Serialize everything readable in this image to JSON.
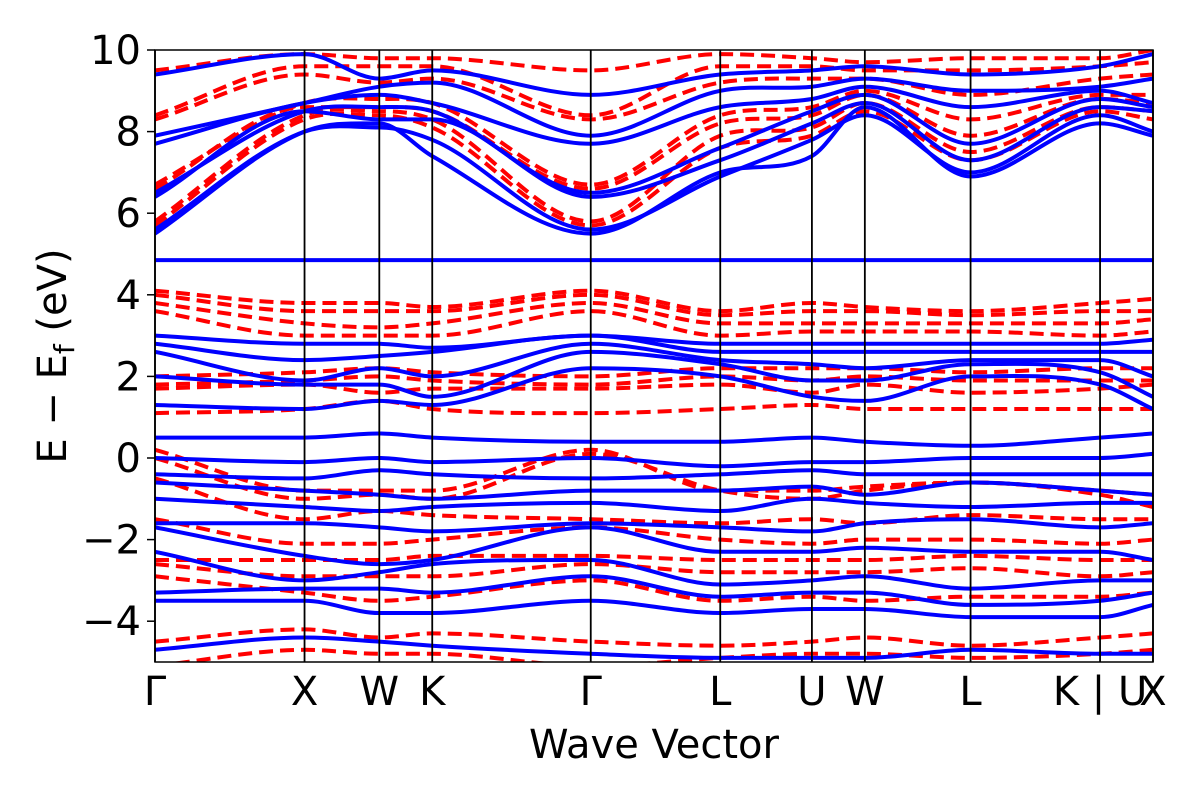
{
  "chart_data": {
    "type": "line",
    "xlabel": "Wave Vector",
    "ylabel": "E − E",
    "ylabel_sub": "f",
    "ylabel_unit": " (eV)",
    "ylim": [
      -5,
      10
    ],
    "yticks": [
      -4,
      -2,
      0,
      2,
      4,
      6,
      8,
      10
    ],
    "ytick_labels": [
      "−4",
      "−2",
      "0",
      "2",
      "4",
      "6",
      "8",
      "10"
    ],
    "grid": false,
    "kpath": [
      {
        "label": "Γ",
        "x": 0.0
      },
      {
        "label": "X",
        "x": 1.0
      },
      {
        "label": "W",
        "x": 1.5
      },
      {
        "label": "K",
        "x": 1.854
      },
      {
        "label": "Γ",
        "x": 2.914
      },
      {
        "label": "L",
        "x": 3.78
      },
      {
        "label": "U",
        "x": 4.393
      },
      {
        "label": "W",
        "x": 4.747
      },
      {
        "label": "L",
        "x": 5.454
      },
      {
        "label": "K | U",
        "x": 6.32
      },
      {
        "label": "X",
        "x": 6.674
      }
    ],
    "series": [
      {
        "style": "solid",
        "color": "#0000ff",
        "bands": [
          [
            -4.7,
            -4.4,
            -4.5,
            -4.6,
            -4.8,
            -4.9,
            -4.9,
            -4.9,
            -4.7,
            -4.8,
            -4.8
          ],
          [
            -3.5,
            -3.5,
            -3.8,
            -3.8,
            -3.5,
            -3.8,
            -3.7,
            -3.7,
            -3.9,
            -3.9,
            -3.6
          ],
          [
            -3.3,
            -3.2,
            -3.2,
            -3.3,
            -2.9,
            -3.4,
            -3.3,
            -3.3,
            -3.6,
            -3.5,
            -3.3
          ],
          [
            -2.3,
            -3.0,
            -2.8,
            -2.6,
            -2.5,
            -3.1,
            -3.0,
            -2.9,
            -3.2,
            -3.0,
            -3.0
          ],
          [
            -1.7,
            -2.4,
            -2.6,
            -2.5,
            -1.7,
            -2.3,
            -2.3,
            -2.2,
            -2.3,
            -2.3,
            -2.5
          ],
          [
            -1.6,
            -1.6,
            -1.7,
            -1.8,
            -1.6,
            -1.7,
            -1.8,
            -1.6,
            -1.5,
            -1.7,
            -1.6
          ],
          [
            -1.0,
            -1.2,
            -1.3,
            -1.2,
            -1.1,
            -1.3,
            -1.0,
            -1.1,
            -1.2,
            -1.1,
            -1.1
          ],
          [
            -0.6,
            -0.8,
            -0.9,
            -1.0,
            -0.8,
            -0.8,
            -0.7,
            -0.9,
            -0.6,
            -0.8,
            -0.9
          ],
          [
            -0.4,
            -0.5,
            -0.3,
            -0.4,
            -0.5,
            -0.4,
            -0.3,
            -0.4,
            -0.4,
            -0.4,
            -0.4
          ],
          [
            0.0,
            -0.1,
            0.0,
            -0.1,
            0.0,
            -0.2,
            -0.1,
            -0.1,
            0.0,
            0.0,
            0.1
          ],
          [
            0.5,
            0.5,
            0.6,
            0.5,
            0.4,
            0.4,
            0.5,
            0.4,
            0.3,
            0.5,
            0.6
          ],
          [
            1.3,
            1.2,
            1.4,
            1.3,
            2.2,
            2.0,
            1.5,
            1.4,
            2.0,
            1.8,
            1.2
          ],
          [
            2.0,
            1.8,
            1.8,
            1.5,
            2.6,
            2.3,
            1.9,
            1.9,
            2.3,
            2.1,
            1.5
          ],
          [
            2.6,
            1.9,
            2.2,
            2.0,
            2.8,
            2.4,
            2.3,
            2.2,
            2.4,
            2.4,
            2.0
          ],
          [
            2.8,
            2.4,
            2.5,
            2.6,
            3.0,
            2.6,
            2.6,
            2.6,
            2.6,
            2.6,
            2.6
          ],
          [
            3.0,
            2.8,
            2.8,
            2.7,
            3.0,
            2.8,
            2.8,
            2.8,
            2.8,
            2.8,
            2.9
          ],
          [
            4.85,
            4.85,
            4.85,
            4.85,
            4.85,
            4.85,
            4.85,
            4.85,
            4.85,
            4.85,
            4.85
          ],
          [
            5.5,
            8.0,
            8.2,
            7.4,
            5.5,
            7.0,
            7.4,
            8.6,
            6.9,
            8.2,
            7.9
          ],
          [
            5.6,
            8.0,
            8.1,
            7.8,
            5.6,
            6.9,
            7.8,
            8.4,
            7.0,
            8.4,
            8.0
          ],
          [
            6.4,
            8.5,
            8.3,
            8.3,
            6.4,
            7.3,
            8.2,
            8.7,
            7.3,
            8.6,
            8.5
          ],
          [
            6.5,
            8.5,
            8.6,
            8.5,
            6.5,
            7.6,
            8.5,
            8.9,
            7.7,
            8.8,
            8.6
          ],
          [
            7.7,
            8.7,
            8.9,
            8.7,
            7.7,
            8.6,
            8.8,
            9.1,
            8.6,
            9.0,
            8.7
          ],
          [
            7.9,
            8.7,
            9.1,
            9.2,
            7.9,
            9.0,
            9.1,
            9.3,
            9.0,
            9.1,
            9.3
          ],
          [
            9.4,
            9.9,
            9.3,
            9.5,
            8.9,
            9.4,
            9.5,
            9.6,
            9.4,
            9.6,
            9.9
          ]
        ]
      },
      {
        "style": "dashed",
        "color": "#ff0000",
        "bands": [
          [
            -5.1,
            -4.7,
            -4.8,
            -4.8,
            -5.1,
            -4.9,
            -4.8,
            -4.8,
            -4.9,
            -4.8,
            -4.7
          ],
          [
            -4.5,
            -4.2,
            -4.4,
            -4.3,
            -4.5,
            -4.6,
            -4.5,
            -4.4,
            -4.6,
            -4.4,
            -4.3
          ],
          [
            -2.9,
            -3.3,
            -3.5,
            -3.4,
            -3.0,
            -3.5,
            -3.4,
            -3.5,
            -3.4,
            -3.4,
            -3.3
          ],
          [
            -2.6,
            -2.9,
            -2.9,
            -2.9,
            -2.6,
            -2.8,
            -2.8,
            -2.8,
            -2.7,
            -2.9,
            -2.8
          ],
          [
            -2.5,
            -2.5,
            -2.5,
            -2.4,
            -2.4,
            -2.5,
            -2.5,
            -2.5,
            -2.4,
            -2.5,
            -2.5
          ],
          [
            -1.5,
            -2.1,
            -2.1,
            -2.0,
            -1.7,
            -2.0,
            -2.1,
            -2.0,
            -2.0,
            -2.1,
            -2.0
          ],
          [
            -0.5,
            -1.5,
            -1.3,
            -1.4,
            -1.5,
            -1.6,
            -1.5,
            -1.6,
            -1.4,
            -1.5,
            -1.5
          ],
          [
            0.0,
            -1.0,
            -0.9,
            -1.0,
            0.1,
            -0.8,
            -1.0,
            -0.8,
            -0.6,
            -0.9,
            -1.2
          ],
          [
            0.2,
            -0.8,
            -0.8,
            -0.8,
            0.2,
            -0.8,
            -0.8,
            -0.7,
            -0.6,
            -0.8,
            -0.9
          ],
          [
            1.1,
            1.2,
            1.4,
            1.2,
            1.1,
            1.2,
            1.3,
            1.2,
            1.2,
            1.2,
            1.2
          ],
          [
            1.7,
            1.8,
            1.6,
            1.7,
            1.7,
            1.8,
            1.6,
            1.8,
            1.6,
            1.7,
            1.8
          ],
          [
            1.8,
            1.9,
            2.0,
            1.9,
            1.8,
            2.0,
            1.9,
            2.0,
            1.9,
            1.9,
            1.9
          ],
          [
            2.0,
            2.1,
            2.2,
            2.1,
            2.0,
            2.2,
            2.2,
            2.2,
            2.1,
            2.2,
            2.2
          ],
          [
            3.6,
            3.0,
            3.0,
            3.0,
            3.6,
            3.0,
            3.1,
            3.1,
            3.1,
            3.0,
            3.1
          ],
          [
            3.8,
            3.3,
            3.2,
            3.3,
            3.8,
            3.3,
            3.3,
            3.3,
            3.3,
            3.3,
            3.4
          ],
          [
            4.0,
            3.6,
            3.6,
            3.6,
            4.0,
            3.5,
            3.6,
            3.6,
            3.5,
            3.6,
            3.6
          ],
          [
            4.1,
            3.8,
            3.8,
            3.7,
            4.1,
            3.6,
            3.8,
            3.7,
            3.6,
            3.8,
            3.9
          ],
          [
            5.7,
            8.3,
            8.4,
            8.1,
            5.7,
            7.6,
            7.9,
            8.5,
            7.3,
            8.5,
            8.3
          ],
          [
            5.8,
            8.4,
            8.5,
            8.3,
            5.8,
            7.9,
            8.1,
            8.7,
            7.5,
            8.6,
            8.5
          ],
          [
            6.6,
            8.6,
            8.6,
            8.5,
            6.6,
            8.2,
            8.4,
            8.9,
            7.9,
            8.8,
            8.7
          ],
          [
            6.7,
            8.7,
            8.8,
            8.7,
            6.7,
            8.4,
            8.6,
            9.0,
            8.3,
            8.9,
            8.9
          ],
          [
            8.3,
            9.4,
            9.2,
            9.3,
            8.3,
            9.2,
            9.3,
            9.3,
            8.9,
            9.3,
            9.4
          ],
          [
            8.4,
            9.6,
            9.6,
            9.6,
            8.4,
            9.6,
            9.6,
            9.5,
            9.5,
            9.6,
            9.7
          ],
          [
            9.5,
            9.9,
            9.8,
            9.8,
            9.5,
            9.9,
            9.8,
            9.7,
            9.8,
            9.8,
            10.0
          ]
        ]
      }
    ]
  }
}
